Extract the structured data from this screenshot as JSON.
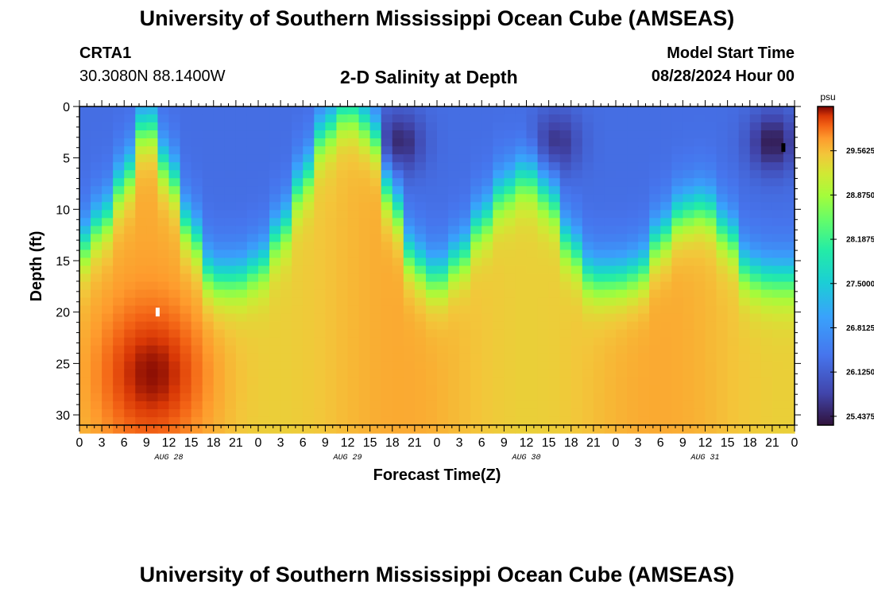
{
  "header": {
    "title": "University of Southern Mississippi Ocean Cube (AMSEAS)",
    "station_id": "CRTA1",
    "coordinates": "30.3080N  88.1400W",
    "chart_title": "2-D Salinity at Depth",
    "start_label": "Model Start Time",
    "start_value": "08/28/2024 Hour 00"
  },
  "footer": {
    "title": "University of Southern Mississippi Ocean Cube (AMSEAS)"
  },
  "chart_data": {
    "type": "heatmap",
    "title": "2-D Salinity at Depth",
    "xlabel": "Forecast Time(Z)",
    "ylabel": "Depth (ft)",
    "x_range_hours": [
      0,
      96
    ],
    "y_range_ft": [
      0,
      31
    ],
    "y_inverted": true,
    "x_tick_labels": [
      "0",
      "3",
      "6",
      "9",
      "12",
      "15",
      "18",
      "21",
      "0",
      "3",
      "6",
      "9",
      "12",
      "15",
      "18",
      "21",
      "0",
      "3",
      "6",
      "9",
      "12",
      "15",
      "18",
      "21",
      "0",
      "3",
      "6",
      "9",
      "12",
      "15",
      "18",
      "21",
      "0"
    ],
    "day_labels": [
      {
        "label": "AUG 28",
        "hour": 12
      },
      {
        "label": "AUG 29",
        "hour": 36
      },
      {
        "label": "AUG 30",
        "hour": 60
      },
      {
        "label": "AUG 31",
        "hour": 84
      }
    ],
    "y_ticks": [
      0,
      5,
      10,
      15,
      20,
      25,
      30
    ],
    "colorbar": {
      "unit": "psu",
      "min": 25.3,
      "max": 30.25,
      "tick_labels": [
        "29.5625",
        "28.8750",
        "28.1875",
        "27.5000",
        "26.8125",
        "26.1250",
        "25.4375"
      ],
      "tick_values": [
        29.5625,
        28.875,
        28.1875,
        27.5,
        26.8125,
        26.125,
        25.4375
      ]
    },
    "field_model": {
      "surface_layer_salinity_psu": 26.3,
      "deep_layer_salinity_psu": 29.55,
      "interface_depth_ft_by_hour": [
        [
          0,
          13.5
        ],
        [
          3,
          11
        ],
        [
          6,
          7
        ],
        [
          9,
          1
        ],
        [
          12,
          6
        ],
        [
          15,
          12
        ],
        [
          18,
          16.5
        ],
        [
          21,
          16.5
        ],
        [
          24,
          15.5
        ],
        [
          27,
          12
        ],
        [
          30,
          7
        ],
        [
          33,
          2
        ],
        [
          36,
          0
        ],
        [
          39,
          1.5
        ],
        [
          42,
          9
        ],
        [
          45,
          15
        ],
        [
          48,
          16.5
        ],
        [
          51,
          14.5
        ],
        [
          54,
          11
        ],
        [
          57,
          8
        ],
        [
          60,
          6.5
        ],
        [
          63,
          8.5
        ],
        [
          66,
          13.5
        ],
        [
          69,
          16.5
        ],
        [
          72,
          16.5
        ],
        [
          75,
          16
        ],
        [
          78,
          12.5
        ],
        [
          81,
          10
        ],
        [
          84,
          9.5
        ],
        [
          87,
          12
        ],
        [
          90,
          16
        ],
        [
          93,
          16.5
        ],
        [
          96,
          16.5
        ]
      ],
      "freshest_pockets": [
        {
          "hour": 43,
          "depth_ft": 3.5,
          "salinity_psu": 25.5
        },
        {
          "hour": 64,
          "depth_ft": 3.5,
          "salinity_psu": 25.6
        },
        {
          "hour": 93,
          "depth_ft": 3.5,
          "salinity_psu": 25.4
        }
      ],
      "saltiest_region": {
        "hour": 10,
        "depth_ft": 26,
        "salinity_psu": 30.1
      }
    },
    "markers": [
      {
        "hour": 10.5,
        "depth_ft": 20,
        "color": "#ffffff"
      },
      {
        "hour": 94.5,
        "depth_ft": 4,
        "color": "#000000"
      }
    ]
  }
}
